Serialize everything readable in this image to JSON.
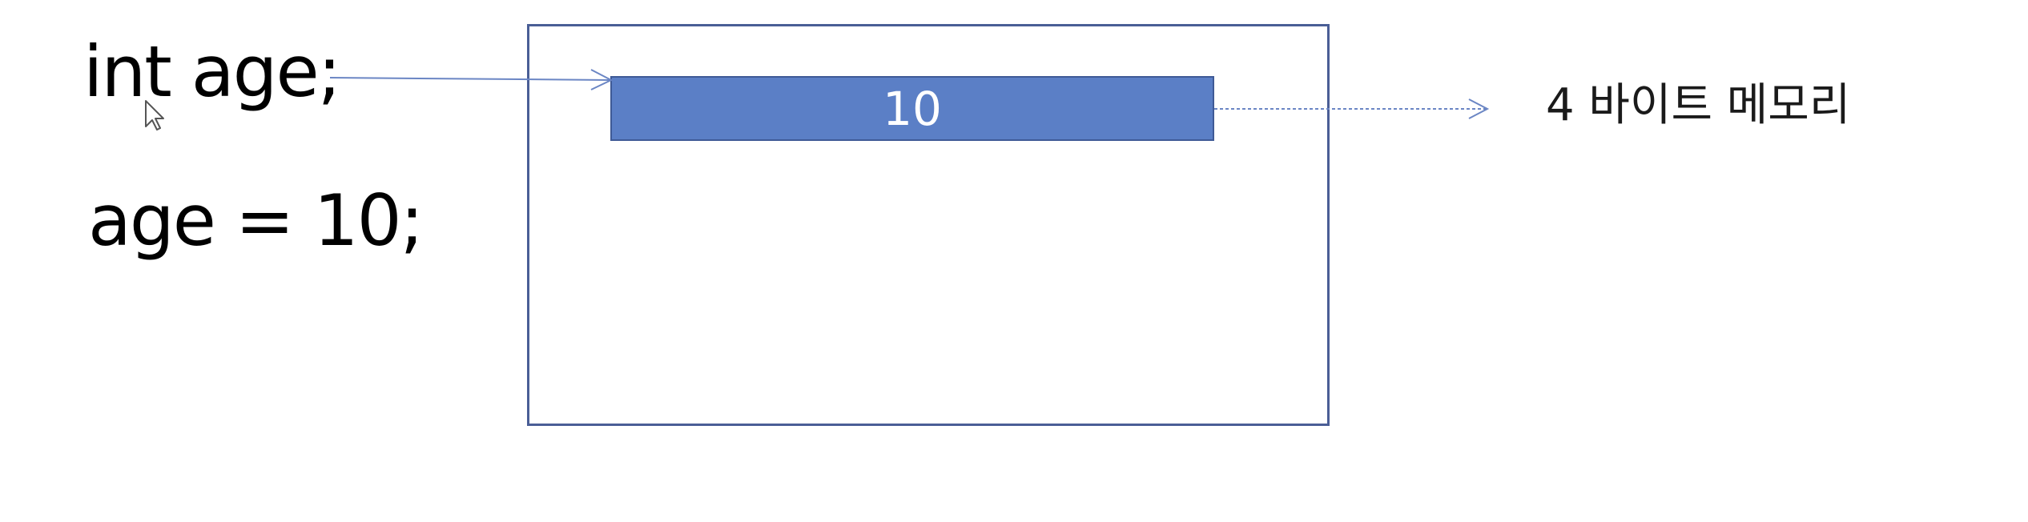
{
  "code": {
    "declaration": "int age;",
    "assignment": "age = 10;"
  },
  "memory": {
    "cell_value": "10",
    "size_label": "4 바이트 메모리"
  },
  "colors": {
    "frame_border": "#4a5e96",
    "cell_fill": "#5b7fc6",
    "arrow": "#6b86c4"
  },
  "icons": {
    "cursor": "mouse-pointer-icon"
  }
}
